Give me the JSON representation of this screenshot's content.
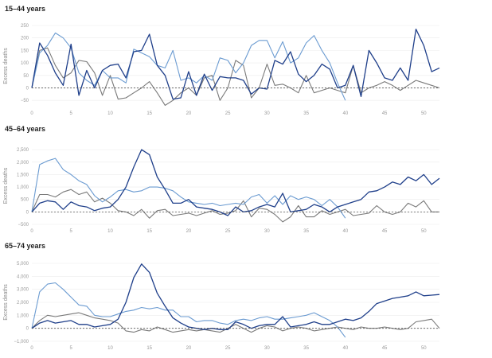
{
  "colors": {
    "dark": "#1f3f8a",
    "light": "#6b9bd1",
    "gray": "#7a7a7a"
  },
  "chart_data": [
    {
      "type": "line",
      "title": "15–44 years",
      "ylabel": "Excess deaths",
      "xlim": [
        0,
        52
      ],
      "ylim": [
        -75,
        250
      ],
      "xticks": [
        0,
        5,
        10,
        15,
        20,
        25,
        30,
        35,
        40,
        45,
        50
      ],
      "yticks": [
        -50,
        0,
        50,
        100,
        150,
        200,
        250
      ],
      "ytick_labels": [
        "−50",
        "0",
        "50",
        "100",
        "150",
        "200",
        "250"
      ],
      "grid": true,
      "series": [
        {
          "color_key": "dark",
          "x": [
            0,
            1,
            2,
            3,
            4,
            5,
            6,
            7,
            8,
            9,
            10,
            11,
            12,
            13,
            14,
            15,
            16,
            17,
            18,
            19,
            20,
            21,
            22,
            23,
            24,
            25,
            26,
            27,
            28,
            29,
            30,
            31,
            32,
            33,
            34,
            35,
            36,
            37,
            38,
            39,
            40,
            41,
            42,
            43,
            44,
            45,
            46,
            47,
            48,
            49,
            50,
            51,
            52
          ],
          "y": [
            0,
            180,
            130,
            60,
            10,
            175,
            -30,
            70,
            0,
            70,
            90,
            95,
            40,
            145,
            150,
            215,
            90,
            50,
            -45,
            -40,
            65,
            -30,
            55,
            -10,
            45,
            40,
            40,
            30,
            -25,
            0,
            -5,
            110,
            95,
            145,
            55,
            25,
            50,
            95,
            75,
            0,
            10,
            90,
            -35,
            150,
            100,
            40,
            30,
            80,
            30,
            235,
            170,
            65,
            80
          ]
        },
        {
          "color_key": "light",
          "x": [
            0,
            1,
            2,
            3,
            4,
            5,
            6,
            7,
            8,
            9,
            10,
            11,
            12,
            13,
            14,
            15,
            16,
            17,
            18,
            19,
            20,
            21,
            22,
            23,
            24,
            25,
            26,
            27,
            28,
            29,
            30,
            31,
            32,
            33,
            34,
            35,
            36,
            37,
            38,
            39,
            40
          ],
          "y": [
            0,
            140,
            170,
            220,
            200,
            160,
            60,
            30,
            10,
            70,
            40,
            40,
            20,
            155,
            140,
            125,
            90,
            80,
            150,
            30,
            40,
            20,
            50,
            30,
            120,
            110,
            60,
            100,
            170,
            190,
            190,
            120,
            185,
            100,
            120,
            180,
            210,
            150,
            100,
            20,
            -50
          ]
        },
        {
          "color_key": "gray",
          "x": [
            0,
            1,
            2,
            3,
            4,
            5,
            6,
            7,
            8,
            9,
            10,
            11,
            12,
            13,
            14,
            15,
            16,
            17,
            18,
            19,
            20,
            21,
            22,
            23,
            24,
            25,
            26,
            27,
            28,
            29,
            30,
            31,
            32,
            33,
            34,
            35,
            36,
            37,
            38,
            39,
            40,
            41,
            42,
            43,
            44,
            45,
            46,
            47,
            48,
            49,
            50,
            51,
            52
          ],
          "y": [
            0,
            150,
            160,
            90,
            40,
            60,
            110,
            105,
            60,
            -30,
            50,
            -45,
            -40,
            -20,
            0,
            25,
            -20,
            -70,
            -50,
            -20,
            0,
            -30,
            40,
            50,
            -50,
            0,
            110,
            90,
            -40,
            0,
            95,
            10,
            15,
            0,
            -20,
            50,
            -20,
            -10,
            0,
            -10,
            -20,
            90,
            -20,
            0,
            10,
            25,
            10,
            -10,
            10,
            30,
            20,
            10,
            0
          ]
        }
      ]
    },
    {
      "type": "line",
      "title": "45–64 years",
      "ylabel": "Excess deaths",
      "xlim": [
        0,
        52
      ],
      "ylim": [
        -500,
        2600
      ],
      "xticks": [
        0,
        5,
        10,
        15,
        20,
        25,
        30,
        35,
        40,
        45,
        50
      ],
      "yticks": [
        -500,
        0,
        500,
        1000,
        1500,
        2000,
        2500
      ],
      "ytick_labels": [
        "−500",
        "0",
        "500",
        "1,000",
        "1,500",
        "2,000",
        "2,500"
      ],
      "grid": true,
      "series": [
        {
          "color_key": "dark",
          "x": [
            0,
            1,
            2,
            3,
            4,
            5,
            6,
            7,
            8,
            9,
            10,
            11,
            12,
            13,
            14,
            15,
            16,
            17,
            18,
            19,
            20,
            21,
            22,
            23,
            24,
            25,
            26,
            27,
            28,
            29,
            30,
            31,
            32,
            33,
            34,
            35,
            36,
            37,
            38,
            39,
            40,
            41,
            42,
            43,
            44,
            45,
            46,
            47,
            48,
            49,
            50,
            51,
            52
          ],
          "y": [
            0,
            350,
            450,
            400,
            100,
            400,
            250,
            200,
            50,
            150,
            200,
            500,
            1000,
            1800,
            2500,
            2300,
            1400,
            900,
            350,
            350,
            500,
            200,
            150,
            100,
            0,
            -150,
            200,
            0,
            50,
            200,
            300,
            200,
            750,
            0,
            50,
            100,
            300,
            200,
            0,
            200,
            300,
            400,
            500,
            800,
            850,
            1000,
            1200,
            1100,
            1400,
            1250,
            1500,
            1100,
            1350
          ]
        },
        {
          "color_key": "light",
          "x": [
            0,
            1,
            2,
            3,
            4,
            5,
            6,
            7,
            8,
            9,
            10,
            11,
            12,
            13,
            14,
            15,
            16,
            17,
            18,
            19,
            20,
            21,
            22,
            23,
            24,
            25,
            26,
            27,
            28,
            29,
            30,
            31,
            32,
            33,
            34,
            35,
            36,
            37,
            38,
            39,
            40
          ],
          "y": [
            0,
            1900,
            2050,
            2150,
            1700,
            1500,
            1250,
            1100,
            650,
            400,
            600,
            850,
            900,
            800,
            850,
            1000,
            1000,
            950,
            850,
            600,
            400,
            350,
            300,
            350,
            250,
            300,
            350,
            300,
            600,
            700,
            350,
            650,
            300,
            650,
            500,
            600,
            500,
            250,
            500,
            200,
            -250
          ]
        },
        {
          "color_key": "gray",
          "x": [
            0,
            1,
            2,
            3,
            4,
            5,
            6,
            7,
            8,
            9,
            10,
            11,
            12,
            13,
            14,
            15,
            16,
            17,
            18,
            19,
            20,
            21,
            22,
            23,
            24,
            25,
            26,
            27,
            28,
            29,
            30,
            31,
            32,
            33,
            34,
            35,
            36,
            37,
            38,
            39,
            40,
            41,
            42,
            43,
            44,
            45,
            46,
            47,
            48,
            49,
            50,
            51,
            52
          ],
          "y": [
            0,
            700,
            700,
            600,
            800,
            900,
            700,
            800,
            400,
            550,
            350,
            50,
            0,
            -150,
            100,
            -250,
            50,
            100,
            -150,
            -100,
            -50,
            -150,
            -50,
            50,
            -100,
            -50,
            50,
            450,
            -200,
            150,
            100,
            -100,
            -400,
            -200,
            250,
            -200,
            -200,
            50,
            -100,
            0,
            100,
            -150,
            -100,
            -50,
            250,
            0,
            -100,
            0,
            350,
            200,
            450,
            0,
            0
          ]
        }
      ]
    },
    {
      "type": "line",
      "title": "65–74 years",
      "ylabel": "Excess deaths",
      "xlim": [
        0,
        52
      ],
      "ylim": [
        -1000,
        5000
      ],
      "xticks": [
        0,
        5,
        10,
        15,
        20,
        25,
        30,
        35,
        40,
        45,
        50
      ],
      "yticks": [
        -1000,
        0,
        1000,
        2000,
        3000,
        4000,
        5000
      ],
      "ytick_labels": [
        "−1,000",
        "0",
        "1,000",
        "2,000",
        "3,000",
        "4,000",
        "5,000"
      ],
      "grid": true,
      "series": [
        {
          "color_key": "dark",
          "x": [
            0,
            1,
            2,
            3,
            4,
            5,
            6,
            7,
            8,
            9,
            10,
            11,
            12,
            13,
            14,
            15,
            16,
            17,
            18,
            19,
            20,
            21,
            22,
            23,
            24,
            25,
            26,
            27,
            28,
            29,
            30,
            31,
            32,
            33,
            34,
            35,
            36,
            37,
            38,
            39,
            40,
            41,
            42,
            43,
            44,
            45,
            46,
            47,
            48,
            49,
            50,
            51,
            52
          ],
          "y": [
            0,
            400,
            600,
            400,
            500,
            600,
            300,
            300,
            100,
            200,
            300,
            700,
            2000,
            3900,
            4950,
            4300,
            2700,
            1700,
            800,
            400,
            100,
            0,
            -100,
            0,
            -100,
            -100,
            500,
            300,
            0,
            200,
            300,
            300,
            900,
            100,
            200,
            300,
            500,
            300,
            300,
            500,
            700,
            600,
            800,
            1300,
            1900,
            2100,
            2300,
            2400,
            2500,
            2800,
            2500,
            2550,
            2600
          ]
        },
        {
          "color_key": "light",
          "x": [
            0,
            1,
            2,
            3,
            4,
            5,
            6,
            7,
            8,
            9,
            10,
            11,
            12,
            13,
            14,
            15,
            16,
            17,
            18,
            19,
            20,
            21,
            22,
            23,
            24,
            25,
            26,
            27,
            28,
            29,
            30,
            31,
            32,
            33,
            34,
            35,
            36,
            37,
            38,
            39,
            40
          ],
          "y": [
            0,
            2800,
            3400,
            3500,
            3000,
            2400,
            1800,
            1700,
            1000,
            900,
            900,
            1100,
            1300,
            1400,
            1600,
            1500,
            1600,
            1400,
            1400,
            900,
            900,
            500,
            600,
            600,
            400,
            300,
            600,
            700,
            600,
            800,
            900,
            700,
            700,
            800,
            900,
            1000,
            1200,
            900,
            600,
            100,
            -700
          ]
        },
        {
          "color_key": "gray",
          "x": [
            0,
            1,
            2,
            3,
            4,
            5,
            6,
            7,
            8,
            9,
            10,
            11,
            12,
            13,
            14,
            15,
            16,
            17,
            18,
            19,
            20,
            21,
            22,
            23,
            24,
            25,
            26,
            27,
            28,
            29,
            30,
            31,
            32,
            33,
            34,
            35,
            36,
            37,
            38,
            39,
            40,
            41,
            42,
            43,
            44,
            45,
            46,
            47,
            48,
            49,
            50,
            51,
            52
          ],
          "y": [
            0,
            600,
            1000,
            900,
            1000,
            1100,
            1200,
            1000,
            800,
            700,
            600,
            400,
            -200,
            -300,
            -100,
            -200,
            100,
            -100,
            -300,
            -200,
            -100,
            -200,
            -100,
            -200,
            -300,
            0,
            300,
            0,
            -300,
            0,
            200,
            100,
            -200,
            0,
            100,
            0,
            -200,
            -100,
            0,
            100,
            0,
            -100,
            100,
            0,
            0,
            100,
            0,
            -100,
            0,
            500,
            600,
            700,
            0
          ]
        }
      ]
    }
  ]
}
